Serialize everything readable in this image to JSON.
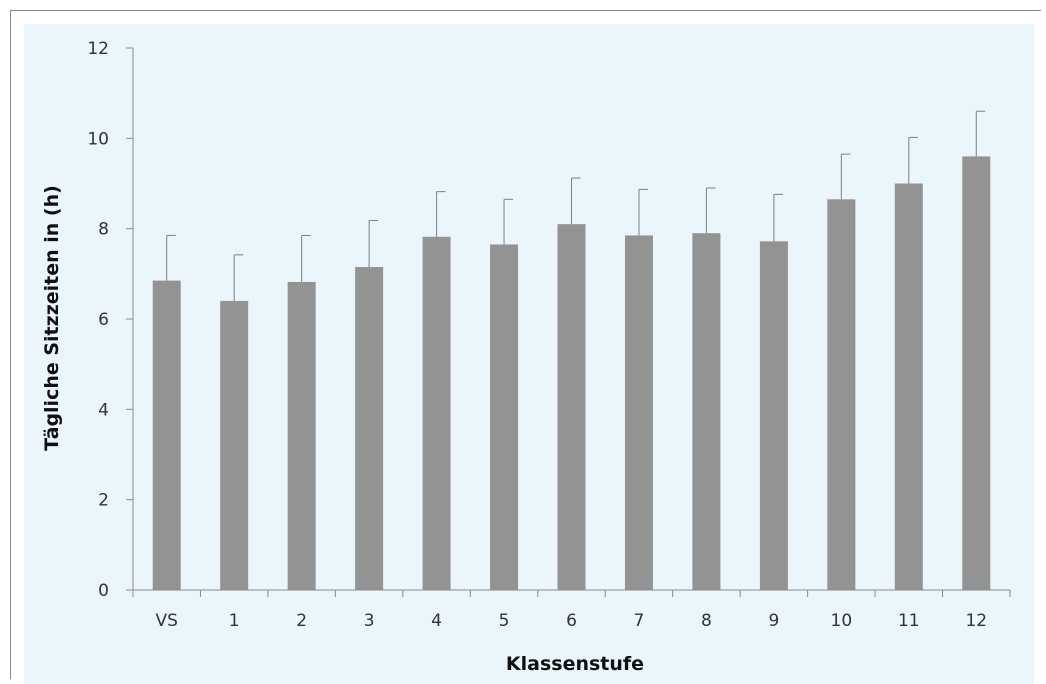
{
  "chart_data": {
    "type": "bar",
    "title": "",
    "xlabel": "Klassenstufe",
    "ylabel": "Tägliche Sitzzeiten in (h)",
    "categories": [
      "VS",
      "1",
      "2",
      "3",
      "4",
      "5",
      "6",
      "7",
      "8",
      "9",
      "10",
      "11",
      "12"
    ],
    "values": [
      6.85,
      6.4,
      6.82,
      7.15,
      7.82,
      7.65,
      8.1,
      7.85,
      7.9,
      7.72,
      8.65,
      9.0,
      9.6
    ],
    "error_upper": [
      1.0,
      1.02,
      1.03,
      1.03,
      1.0,
      1.0,
      1.02,
      1.02,
      1.0,
      1.04,
      1.0,
      1.02,
      1.0
    ],
    "ylim": [
      0,
      12
    ],
    "yticks": [
      0,
      2,
      4,
      6,
      8,
      10,
      12
    ],
    "grid": false,
    "legend": "none",
    "colors": {
      "bar": "#939393",
      "background": "#eaf5fc",
      "axis": "#8a8a8a",
      "errorbar": "#7f7f7f"
    }
  }
}
